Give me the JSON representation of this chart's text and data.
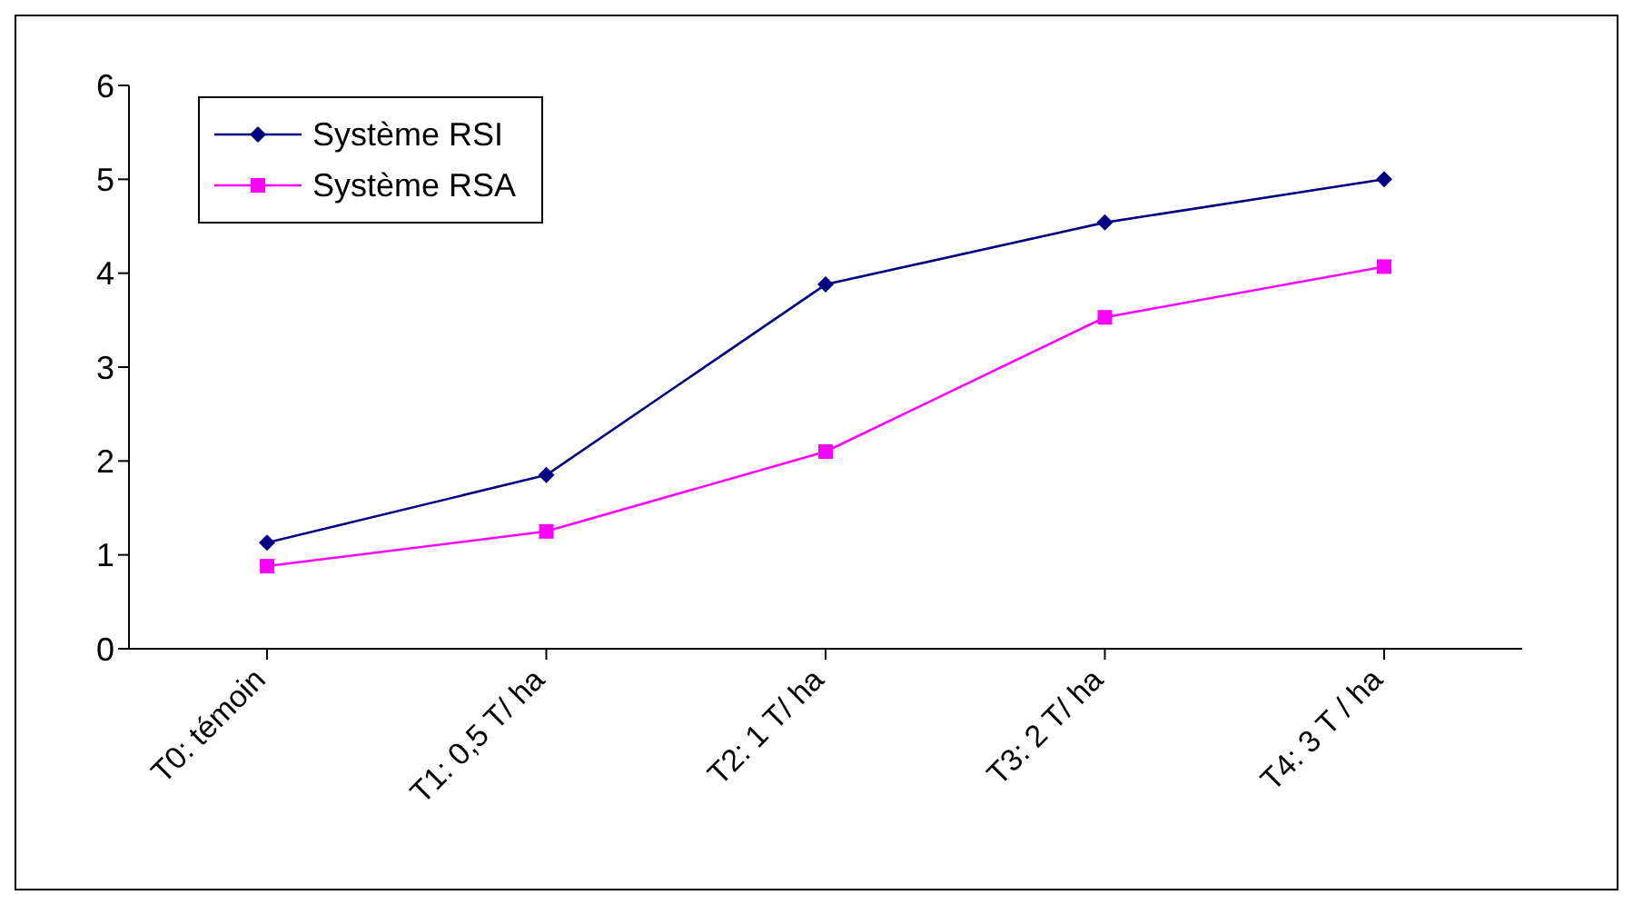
{
  "chart_data": {
    "type": "line",
    "categories": [
      "T0: témoin",
      "T1: 0,5 T/ ha",
      "T2: 1 T/ ha",
      "T3: 2 T/ ha",
      "T4: 3 T / ha"
    ],
    "series": [
      {
        "name": "Système RSI",
        "color": "#000080",
        "marker": "diamond",
        "values": [
          1.13,
          1.85,
          3.88,
          4.54,
          5.0
        ]
      },
      {
        "name": "Système RSA",
        "color": "#ff00ff",
        "marker": "square",
        "values": [
          0.88,
          1.25,
          2.1,
          3.53,
          4.07
        ]
      }
    ],
    "ylim": [
      0,
      6
    ],
    "yticks": [
      0,
      1,
      2,
      3,
      4,
      5,
      6
    ],
    "grid": false,
    "legend": "top left",
    "line_style": "solid"
  }
}
